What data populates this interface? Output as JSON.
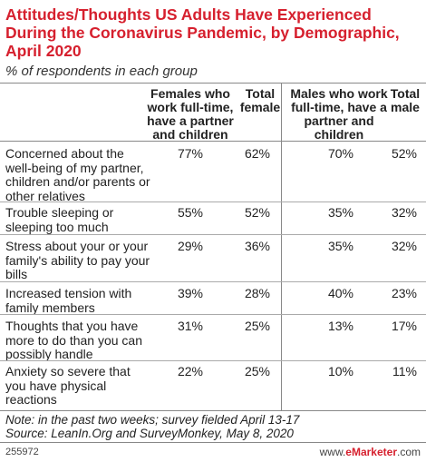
{
  "chart_data": {
    "type": "table",
    "title": "Attitudes/Thoughts US Adults Have Experienced During the Coronavirus Pandemic, by Demographic, April 2020",
    "subtitle": "% of respondents in each group",
    "columns": [
      "Females who work full-time, have a partner and children",
      "Total female",
      "Males who work full-time, have a partner and children",
      "Total male"
    ],
    "rows": [
      {
        "label": "Concerned about the well-being of my partner, children and/or parents or other relatives",
        "values": [
          "77%",
          "62%",
          "70%",
          "52%"
        ]
      },
      {
        "label": "Trouble sleeping or sleeping too much",
        "values": [
          "55%",
          "52%",
          "35%",
          "32%"
        ]
      },
      {
        "label": "Stress about your or your family's ability to pay your bills",
        "values": [
          "29%",
          "36%",
          "35%",
          "32%"
        ]
      },
      {
        "label": "Increased tension with family members",
        "values": [
          "39%",
          "28%",
          "40%",
          "23%"
        ]
      },
      {
        "label": "Thoughts that you have more to do than you can possibly handle",
        "values": [
          "31%",
          "25%",
          "13%",
          "17%"
        ]
      },
      {
        "label": "Anxiety so severe that you have physical reactions",
        "values": [
          "22%",
          "25%",
          "10%",
          "11%"
        ]
      }
    ],
    "note": "Note: in the past two weeks; survey fielded April 13-17",
    "source": "Source: LeanIn.Org and SurveyMonkey, May 8, 2020"
  },
  "footer": {
    "chart_id": "255972",
    "brand_prefix": "www.",
    "brand_name": "eMarketer",
    "brand_suffix": ".com"
  }
}
